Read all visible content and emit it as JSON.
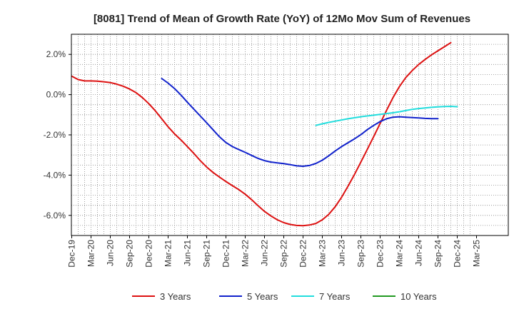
{
  "chart_data": {
    "type": "line",
    "title": "[8081]  Trend of Mean of Growth Rate (YoY) of 12Mo Mov Sum of Revenues",
    "xlabel": "",
    "ylabel": "",
    "y_unit": "%",
    "ylim": [
      -7.0,
      3.0
    ],
    "yticks": [
      2.0,
      0.0,
      -2.0,
      -4.0,
      -6.0
    ],
    "ytick_labels": [
      "2.0%",
      "0.0%",
      "-2.0%",
      "-4.0%",
      "-6.0%"
    ],
    "x_start": "Dec-19",
    "x_end": "Mar-25",
    "xtick_labels": [
      "Dec-19",
      "Mar-20",
      "Jun-20",
      "Sep-20",
      "Dec-20",
      "Mar-21",
      "Jun-21",
      "Sep-21",
      "Dec-21",
      "Mar-22",
      "Jun-22",
      "Sep-22",
      "Dec-22",
      "Mar-23",
      "Jun-23",
      "Sep-23",
      "Dec-23",
      "Mar-24",
      "Jun-24",
      "Sep-24",
      "Dec-24",
      "Mar-25"
    ],
    "grid": true,
    "legend_position": "bottom",
    "series": [
      {
        "name": "3 Years",
        "color": "#dd1111",
        "start_index": 0,
        "values": [
          0.92,
          0.75,
          0.68,
          0.68,
          0.67,
          0.64,
          0.6,
          0.52,
          0.42,
          0.28,
          0.1,
          -0.15,
          -0.45,
          -0.8,
          -1.2,
          -1.6,
          -1.95,
          -2.25,
          -2.58,
          -2.92,
          -3.28,
          -3.6,
          -3.87,
          -4.1,
          -4.32,
          -4.52,
          -4.72,
          -4.95,
          -5.22,
          -5.52,
          -5.8,
          -6.03,
          -6.22,
          -6.36,
          -6.45,
          -6.5,
          -6.51,
          -6.48,
          -6.4,
          -6.22,
          -5.95,
          -5.57,
          -5.1,
          -4.55,
          -3.97,
          -3.35,
          -2.72,
          -2.08,
          -1.43,
          -0.78,
          -0.15,
          0.4,
          0.85,
          1.2,
          1.5,
          1.75,
          1.98,
          2.18,
          2.38,
          2.58
        ]
      },
      {
        "name": "5 Years",
        "color": "#1122cc",
        "start_index": 14,
        "values": [
          0.8,
          0.57,
          0.3,
          -0.02,
          -0.38,
          -0.72,
          -1.06,
          -1.4,
          -1.75,
          -2.1,
          -2.38,
          -2.58,
          -2.73,
          -2.87,
          -3.02,
          -3.17,
          -3.28,
          -3.35,
          -3.39,
          -3.43,
          -3.48,
          -3.54,
          -3.56,
          -3.52,
          -3.42,
          -3.26,
          -3.04,
          -2.8,
          -2.58,
          -2.39,
          -2.2,
          -1.99,
          -1.74,
          -1.53,
          -1.34,
          -1.2,
          -1.12,
          -1.1,
          -1.12,
          -1.14,
          -1.16,
          -1.18,
          -1.19,
          -1.19
        ]
      },
      {
        "name": "7 Years",
        "color": "#22dddd",
        "start_index": 38,
        "values": [
          -1.53,
          -1.45,
          -1.38,
          -1.32,
          -1.26,
          -1.2,
          -1.15,
          -1.1,
          -1.06,
          -1.02,
          -0.98,
          -0.94,
          -0.9,
          -0.85,
          -0.79,
          -0.73,
          -0.69,
          -0.66,
          -0.63,
          -0.61,
          -0.59,
          -0.58,
          -0.6
        ]
      },
      {
        "name": "10 Years",
        "color": "#229922",
        "start_index": 0,
        "values": []
      }
    ]
  }
}
